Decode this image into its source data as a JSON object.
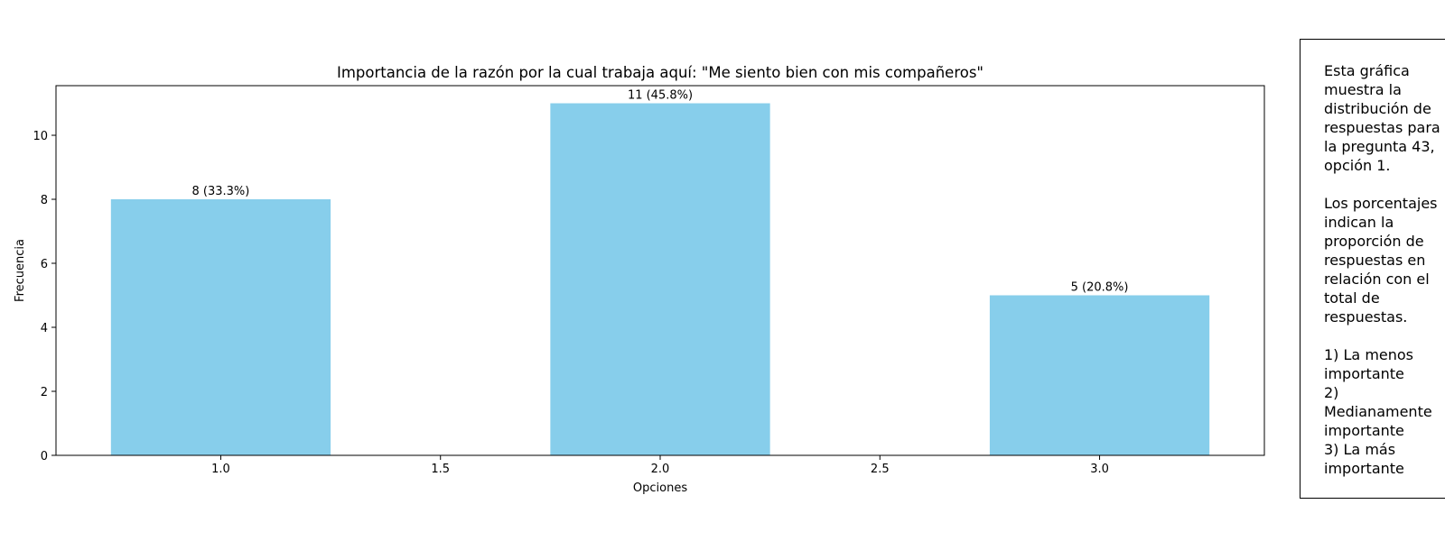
{
  "chart_data": {
    "type": "bar",
    "title": "Importancia de la razón por la cual trabaja aquí: \"Me siento bien con mis compañeros\"",
    "xlabel": "Opciones",
    "ylabel": "Frecuencia",
    "x": [
      1.0,
      2.0,
      3.0
    ],
    "values": [
      8,
      11,
      5
    ],
    "data_labels": [
      "8 (33.3%)",
      "11 (45.8%)",
      "5 (20.8%)"
    ],
    "bar_width": 0.5,
    "xlim": [
      0.625,
      3.375
    ],
    "ylim": [
      0,
      11.55
    ],
    "xticks": [
      1.0,
      1.5,
      2.0,
      2.5,
      3.0
    ],
    "xtick_labels": [
      "1.0",
      "1.5",
      "2.0",
      "2.5",
      "3.0"
    ],
    "yticks": [
      0,
      2,
      4,
      6,
      8,
      10
    ],
    "ytick_labels": [
      "0",
      "2",
      "4",
      "6",
      "8",
      "10"
    ],
    "grid": false,
    "bar_color": "#87CEEB"
  },
  "note": {
    "text": "Esta gráfica muestra la distribución de respuestas para la pregunta 43, opción 1.\n\nLos porcentajes indican la proporción de respuestas en relación con el total de respuestas.\n\n1) La menos importante\n2) Medianamente importante\n3) La más importante"
  }
}
